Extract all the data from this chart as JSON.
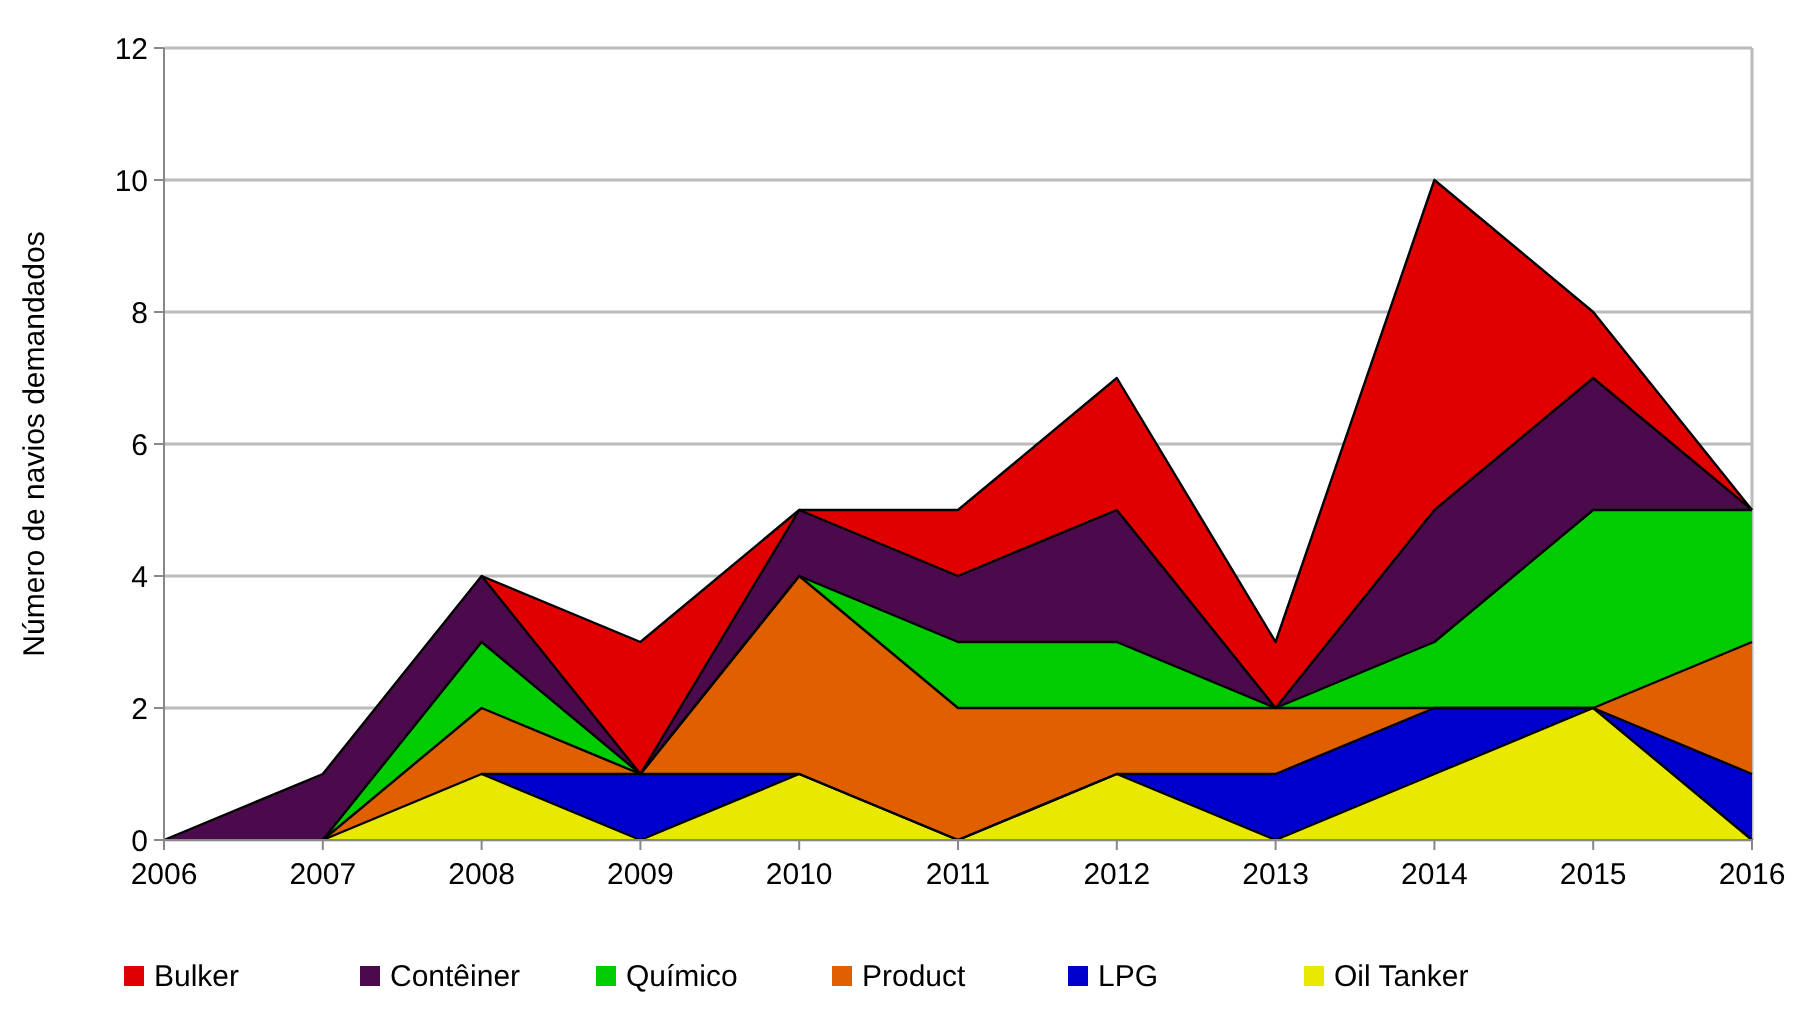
{
  "chart_data": {
    "type": "area",
    "stacked": true,
    "ylabel": "Número de navios demandados",
    "x": [
      2006,
      2007,
      2008,
      2009,
      2010,
      2011,
      2012,
      2013,
      2014,
      2015,
      2016
    ],
    "xlim": [
      2006,
      2016
    ],
    "xticks": [
      2006,
      2007,
      2008,
      2009,
      2010,
      2011,
      2012,
      2013,
      2014,
      2015,
      2016
    ],
    "ylim": [
      0,
      12
    ],
    "yticks": [
      0,
      2,
      4,
      6,
      8,
      10,
      12
    ],
    "grid": "y",
    "legend": "bottom",
    "series": [
      {
        "name": "Oil Tanker",
        "color": "#e8e800",
        "values": [
          null,
          0,
          1,
          0,
          1,
          0,
          1,
          0,
          1,
          2,
          0
        ]
      },
      {
        "name": "LPG",
        "color": "#0000cc",
        "values": [
          null,
          null,
          0,
          1,
          0,
          0,
          0,
          1,
          1,
          0,
          1
        ]
      },
      {
        "name": "Product",
        "color": "#e06000",
        "values": [
          null,
          0,
          1,
          0,
          3,
          2,
          1,
          1,
          0,
          0,
          2
        ]
      },
      {
        "name": "Químico",
        "color": "#00cc00",
        "values": [
          null,
          0,
          1,
          0,
          0,
          1,
          1,
          0,
          1,
          3,
          2
        ]
      },
      {
        "name": "Contêiner",
        "color": "#4b0a4b",
        "values": [
          0,
          1,
          1,
          0,
          1,
          1,
          2,
          0,
          2,
          2,
          0
        ]
      },
      {
        "name": "Bulker",
        "color": "#e00000",
        "values": [
          null,
          null,
          0,
          2,
          0,
          1,
          2,
          1,
          5,
          1,
          0
        ]
      }
    ]
  }
}
